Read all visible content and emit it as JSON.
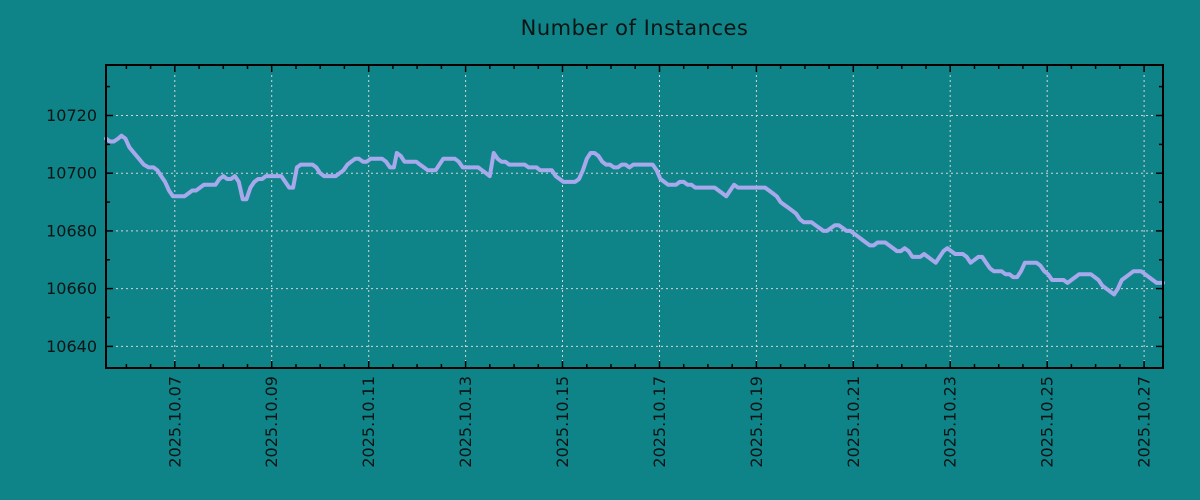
{
  "page": {
    "background_color": "#0f8488",
    "text_color": "#0a1414"
  },
  "chart_data": {
    "type": "line",
    "title": "Number of Instances",
    "xlabel": "",
    "ylabel": "",
    "legend": "none",
    "grid": "dashed gridlines at major ticks, both axes",
    "line_color": "#a8a8ec",
    "grid_color": "#d4d4d4",
    "border_color": "#000000",
    "tick_label_color": "#0a1414",
    "x_axis_kind": "date, labels rotated 90deg, format 2025.10.DD",
    "xlim": [
      5.58,
      27.39
    ],
    "ylim": [
      10632.5,
      10737.5
    ],
    "x_major_ticks": [
      {
        "value": 7,
        "label": "2025.10.07"
      },
      {
        "value": 9,
        "label": "2025.10.09"
      },
      {
        "value": 11,
        "label": "2025.10.11"
      },
      {
        "value": 13,
        "label": "2025.10.13"
      },
      {
        "value": 15,
        "label": "2025.10.15"
      },
      {
        "value": 17,
        "label": "2025.10.17"
      },
      {
        "value": 19,
        "label": "2025.10.19"
      },
      {
        "value": 21,
        "label": "2025.10.21"
      },
      {
        "value": 23,
        "label": "2025.10.23"
      },
      {
        "value": 25,
        "label": "2025.10.25"
      },
      {
        "value": 27,
        "label": "2025.10.27"
      }
    ],
    "x_minor_step": 0.5,
    "y_major_ticks": [
      10640,
      10660,
      10680,
      10700,
      10720
    ],
    "y_minor_ticks": [
      10650,
      10670,
      10690,
      10710,
      10730
    ],
    "points": [
      [
        5.58,
        10712
      ],
      [
        5.66,
        10711
      ],
      [
        5.74,
        10711
      ],
      [
        5.83,
        10712
      ],
      [
        5.9,
        10713
      ],
      [
        5.98,
        10712
      ],
      [
        6.06,
        10709
      ],
      [
        6.16,
        10707
      ],
      [
        6.26,
        10705
      ],
      [
        6.36,
        10703
      ],
      [
        6.46,
        10702
      ],
      [
        6.56,
        10702
      ],
      [
        6.64,
        10701
      ],
      [
        6.72,
        10699
      ],
      [
        6.8,
        10697
      ],
      [
        6.88,
        10694
      ],
      [
        6.96,
        10692
      ],
      [
        7.04,
        10692
      ],
      [
        7.12,
        10692
      ],
      [
        7.2,
        10692
      ],
      [
        7.28,
        10693
      ],
      [
        7.36,
        10694
      ],
      [
        7.44,
        10694
      ],
      [
        7.52,
        10695
      ],
      [
        7.6,
        10696
      ],
      [
        7.68,
        10696
      ],
      [
        7.76,
        10696
      ],
      [
        7.84,
        10696
      ],
      [
        7.92,
        10698
      ],
      [
        8.0,
        10699
      ],
      [
        8.08,
        10698
      ],
      [
        8.16,
        10698
      ],
      [
        8.24,
        10699
      ],
      [
        8.32,
        10697
      ],
      [
        8.4,
        10691
      ],
      [
        8.48,
        10691
      ],
      [
        8.56,
        10695
      ],
      [
        8.64,
        10697
      ],
      [
        8.72,
        10698
      ],
      [
        8.8,
        10698
      ],
      [
        8.88,
        10699
      ],
      [
        8.96,
        10699
      ],
      [
        9.04,
        10699
      ],
      [
        9.12,
        10699
      ],
      [
        9.2,
        10699
      ],
      [
        9.28,
        10697
      ],
      [
        9.36,
        10695
      ],
      [
        9.44,
        10695
      ],
      [
        9.52,
        10702
      ],
      [
        9.6,
        10703
      ],
      [
        9.68,
        10703
      ],
      [
        9.76,
        10703
      ],
      [
        9.84,
        10703
      ],
      [
        9.92,
        10702
      ],
      [
        10.0,
        10700
      ],
      [
        10.08,
        10699
      ],
      [
        10.16,
        10699
      ],
      [
        10.24,
        10699
      ],
      [
        10.32,
        10699
      ],
      [
        10.4,
        10700
      ],
      [
        10.48,
        10701
      ],
      [
        10.56,
        10703
      ],
      [
        10.64,
        10704
      ],
      [
        10.72,
        10705
      ],
      [
        10.8,
        10705
      ],
      [
        10.88,
        10704
      ],
      [
        10.96,
        10704
      ],
      [
        11.04,
        10705
      ],
      [
        11.12,
        10705
      ],
      [
        11.2,
        10705
      ],
      [
        11.28,
        10705
      ],
      [
        11.36,
        10704
      ],
      [
        11.44,
        10702
      ],
      [
        11.52,
        10702
      ],
      [
        11.58,
        10707
      ],
      [
        11.66,
        10706
      ],
      [
        11.74,
        10704
      ],
      [
        11.82,
        10704
      ],
      [
        11.9,
        10704
      ],
      [
        11.98,
        10704
      ],
      [
        12.06,
        10703
      ],
      [
        12.14,
        10702
      ],
      [
        12.22,
        10701
      ],
      [
        12.3,
        10701
      ],
      [
        12.38,
        10701
      ],
      [
        12.46,
        10703
      ],
      [
        12.54,
        10705
      ],
      [
        12.62,
        10705
      ],
      [
        12.7,
        10705
      ],
      [
        12.78,
        10705
      ],
      [
        12.86,
        10704
      ],
      [
        12.94,
        10702
      ],
      [
        13.02,
        10702
      ],
      [
        13.1,
        10702
      ],
      [
        13.18,
        10702
      ],
      [
        13.26,
        10702
      ],
      [
        13.34,
        10701
      ],
      [
        13.42,
        10700
      ],
      [
        13.5,
        10699
      ],
      [
        13.58,
        10707
      ],
      [
        13.66,
        10705
      ],
      [
        13.74,
        10704
      ],
      [
        13.82,
        10704
      ],
      [
        13.9,
        10703
      ],
      [
        13.98,
        10703
      ],
      [
        14.06,
        10703
      ],
      [
        14.14,
        10703
      ],
      [
        14.22,
        10703
      ],
      [
        14.3,
        10702
      ],
      [
        14.38,
        10702
      ],
      [
        14.46,
        10702
      ],
      [
        14.54,
        10701
      ],
      [
        14.62,
        10701
      ],
      [
        14.7,
        10701
      ],
      [
        14.78,
        10701
      ],
      [
        14.86,
        10699
      ],
      [
        14.94,
        10698
      ],
      [
        15.02,
        10697
      ],
      [
        15.1,
        10697
      ],
      [
        15.18,
        10697
      ],
      [
        15.26,
        10697
      ],
      [
        15.34,
        10698
      ],
      [
        15.42,
        10701
      ],
      [
        15.5,
        10705
      ],
      [
        15.58,
        10707
      ],
      [
        15.66,
        10707
      ],
      [
        15.74,
        10706
      ],
      [
        15.82,
        10704
      ],
      [
        15.9,
        10703
      ],
      [
        15.98,
        10703
      ],
      [
        16.06,
        10702
      ],
      [
        16.14,
        10702
      ],
      [
        16.22,
        10703
      ],
      [
        16.3,
        10703
      ],
      [
        16.38,
        10702
      ],
      [
        16.46,
        10703
      ],
      [
        16.54,
        10703
      ],
      [
        16.62,
        10703
      ],
      [
        16.7,
        10703
      ],
      [
        16.78,
        10703
      ],
      [
        16.86,
        10703
      ],
      [
        16.94,
        10701
      ],
      [
        17.02,
        10698
      ],
      [
        17.1,
        10697
      ],
      [
        17.18,
        10696
      ],
      [
        17.26,
        10696
      ],
      [
        17.34,
        10696
      ],
      [
        17.42,
        10697
      ],
      [
        17.5,
        10697
      ],
      [
        17.58,
        10696
      ],
      [
        17.66,
        10696
      ],
      [
        17.74,
        10695
      ],
      [
        17.82,
        10695
      ],
      [
        17.9,
        10695
      ],
      [
        17.98,
        10695
      ],
      [
        18.06,
        10695
      ],
      [
        18.14,
        10695
      ],
      [
        18.22,
        10694
      ],
      [
        18.3,
        10693
      ],
      [
        18.38,
        10692
      ],
      [
        18.46,
        10694
      ],
      [
        18.54,
        10696
      ],
      [
        18.62,
        10695
      ],
      [
        18.7,
        10695
      ],
      [
        18.78,
        10695
      ],
      [
        18.86,
        10695
      ],
      [
        18.94,
        10695
      ],
      [
        19.02,
        10695
      ],
      [
        19.1,
        10695
      ],
      [
        19.18,
        10695
      ],
      [
        19.26,
        10694
      ],
      [
        19.34,
        10693
      ],
      [
        19.42,
        10692
      ],
      [
        19.5,
        10690
      ],
      [
        19.58,
        10689
      ],
      [
        19.66,
        10688
      ],
      [
        19.74,
        10687
      ],
      [
        19.82,
        10686
      ],
      [
        19.9,
        10684
      ],
      [
        19.98,
        10683
      ],
      [
        20.06,
        10683
      ],
      [
        20.14,
        10683
      ],
      [
        20.22,
        10682
      ],
      [
        20.3,
        10681
      ],
      [
        20.38,
        10680
      ],
      [
        20.46,
        10680
      ],
      [
        20.54,
        10681
      ],
      [
        20.62,
        10682
      ],
      [
        20.7,
        10682
      ],
      [
        20.78,
        10681
      ],
      [
        20.86,
        10680
      ],
      [
        20.94,
        10680
      ],
      [
        21.02,
        10679
      ],
      [
        21.1,
        10678
      ],
      [
        21.18,
        10677
      ],
      [
        21.26,
        10676
      ],
      [
        21.34,
        10675
      ],
      [
        21.42,
        10675
      ],
      [
        21.5,
        10676
      ],
      [
        21.58,
        10676
      ],
      [
        21.66,
        10676
      ],
      [
        21.74,
        10675
      ],
      [
        21.82,
        10674
      ],
      [
        21.9,
        10673
      ],
      [
        21.98,
        10673
      ],
      [
        22.06,
        10674
      ],
      [
        22.14,
        10673
      ],
      [
        22.22,
        10671
      ],
      [
        22.3,
        10671
      ],
      [
        22.38,
        10671
      ],
      [
        22.46,
        10672
      ],
      [
        22.54,
        10671
      ],
      [
        22.62,
        10670
      ],
      [
        22.7,
        10669
      ],
      [
        22.78,
        10671
      ],
      [
        22.86,
        10673
      ],
      [
        22.94,
        10674
      ],
      [
        23.02,
        10673
      ],
      [
        23.1,
        10672
      ],
      [
        23.18,
        10672
      ],
      [
        23.26,
        10672
      ],
      [
        23.34,
        10671
      ],
      [
        23.42,
        10669
      ],
      [
        23.5,
        10670
      ],
      [
        23.58,
        10671
      ],
      [
        23.66,
        10671
      ],
      [
        23.74,
        10669
      ],
      [
        23.82,
        10667
      ],
      [
        23.9,
        10666
      ],
      [
        23.98,
        10666
      ],
      [
        24.06,
        10666
      ],
      [
        24.14,
        10665
      ],
      [
        24.22,
        10665
      ],
      [
        24.3,
        10664
      ],
      [
        24.38,
        10664
      ],
      [
        24.46,
        10666
      ],
      [
        24.54,
        10669
      ],
      [
        24.62,
        10669
      ],
      [
        24.7,
        10669
      ],
      [
        24.78,
        10669
      ],
      [
        24.86,
        10668
      ],
      [
        24.94,
        10666
      ],
      [
        25.02,
        10665
      ],
      [
        25.1,
        10663
      ],
      [
        25.18,
        10663
      ],
      [
        25.26,
        10663
      ],
      [
        25.34,
        10663
      ],
      [
        25.42,
        10662
      ],
      [
        25.5,
        10663
      ],
      [
        25.58,
        10664
      ],
      [
        25.66,
        10665
      ],
      [
        25.74,
        10665
      ],
      [
        25.82,
        10665
      ],
      [
        25.9,
        10665
      ],
      [
        25.98,
        10664
      ],
      [
        26.06,
        10663
      ],
      [
        26.14,
        10661
      ],
      [
        26.22,
        10660
      ],
      [
        26.3,
        10659
      ],
      [
        26.38,
        10658
      ],
      [
        26.46,
        10660
      ],
      [
        26.54,
        10663
      ],
      [
        26.62,
        10664
      ],
      [
        26.7,
        10665
      ],
      [
        26.78,
        10666
      ],
      [
        26.86,
        10666
      ],
      [
        26.94,
        10666
      ],
      [
        27.02,
        10665
      ],
      [
        27.1,
        10664
      ],
      [
        27.18,
        10663
      ],
      [
        27.26,
        10662
      ],
      [
        27.34,
        10662
      ],
      [
        27.39,
        10662
      ]
    ]
  }
}
